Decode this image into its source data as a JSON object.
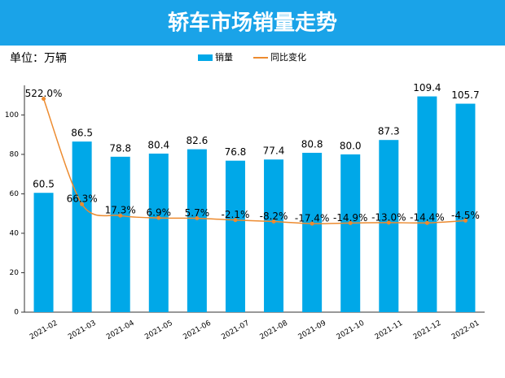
{
  "chart_data": {
    "type": "bar",
    "title": "轿车市场销量走势",
    "unit_label": "单位：万辆",
    "categories": [
      "2021-02",
      "2021-03",
      "2021-04",
      "2021-05",
      "2021-06",
      "2021-07",
      "2021-08",
      "2021-09",
      "2021-10",
      "2021-11",
      "2021-12",
      "2022-01"
    ],
    "series": [
      {
        "name": "销量",
        "type": "bar",
        "color": "#00a8e8",
        "values": [
          60.5,
          86.5,
          78.8,
          80.4,
          82.6,
          76.8,
          77.4,
          80.8,
          80.0,
          87.3,
          109.4,
          105.7
        ],
        "value_labels": [
          "60.5",
          "86.5",
          "78.8",
          "80.4",
          "82.6",
          "76.8",
          "77.4",
          "80.8",
          "80.0",
          "87.3",
          "109.4",
          "105.7"
        ]
      },
      {
        "name": "同比变化",
        "type": "line",
        "axis": "y2",
        "color": "#ed8b2f",
        "values": [
          522.0,
          66.3,
          17.3,
          6.9,
          5.7,
          -2.1,
          -8.2,
          -17.4,
          -14.9,
          -13.0,
          -14.4,
          -4.5
        ],
        "value_labels": [
          "522.0%",
          "66.3%",
          "17.3%",
          "6.9%",
          "5.7%",
          "-2.1%",
          "-8.2%",
          "-17.4%",
          "-14.9%",
          "-13.0%",
          "-14.4%",
          "-4.5%"
        ]
      }
    ],
    "ylim": [
      0,
      115
    ],
    "yticks": [
      0,
      20,
      40,
      60,
      80,
      100
    ],
    "y2lim": [
      -400,
      580
    ]
  }
}
